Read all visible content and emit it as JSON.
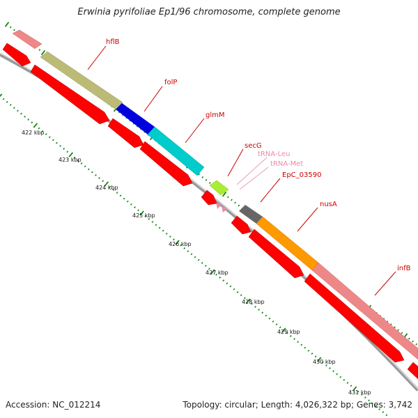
{
  "title": "Erwinia pyrifoliae Ep1/96 chromosome, complete genome",
  "footer": {
    "accession": "Accession: NC_012214",
    "summary": "Topology: circular; Length: 4,026,322 bp; Genes: 3,742"
  },
  "colors": {
    "cds_red": "#ff0000",
    "hflB": "#ee8888",
    "folP": "#bbbb77",
    "glmM": "#0000dd",
    "cyan": "#00cccc",
    "secG": "#aaee33",
    "EpC_03590": "#666666",
    "nusA": "#ff9900",
    "infB": "#ee8888",
    "trna": "#ee88aa",
    "tick_green": "#118811",
    "backbone": "#999999"
  },
  "kbp_ticks": [
    "422 kbp",
    "423 kbp",
    "424 kbp",
    "425 kbp",
    "426 kbp",
    "427 kbp",
    "428 kbp",
    "429 kbp",
    "430 kbp",
    "431 kbp"
  ],
  "gene_labels": [
    "hflB",
    "folP",
    "glmM",
    "secG",
    "tRNA-Leu",
    "tRNA-Met",
    "EpC_03590",
    "nusA",
    "infB"
  ]
}
